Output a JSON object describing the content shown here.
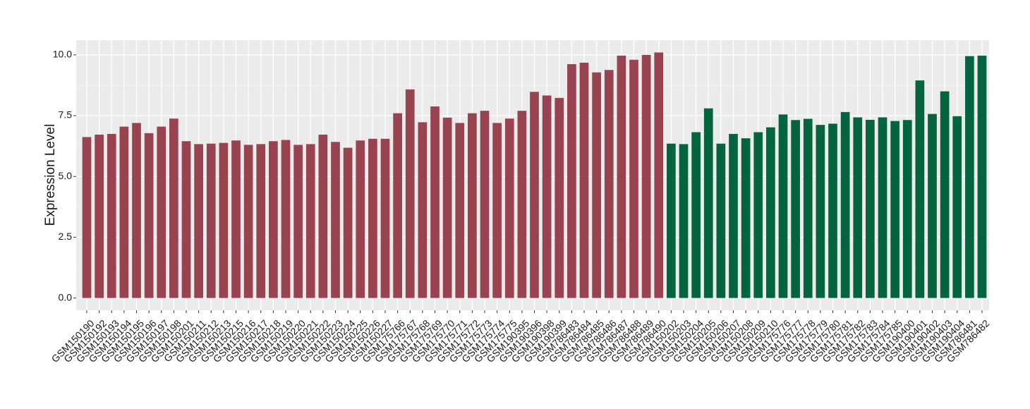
{
  "chart_data": {
    "type": "bar",
    "y_label": "Expression Level",
    "categories": [
      "GSM150190",
      "GSM150192",
      "GSM150193",
      "GSM150194",
      "GSM150195",
      "GSM150196",
      "GSM150197",
      "GSM150198",
      "GSM150201",
      "GSM150211",
      "GSM150212",
      "GSM150213",
      "GSM150215",
      "GSM150216",
      "GSM150217",
      "GSM150218",
      "GSM150219",
      "GSM150220",
      "GSM150221",
      "GSM150222",
      "GSM150223",
      "GSM150224",
      "GSM150225",
      "GSM150226",
      "GSM150227",
      "GSM175766",
      "GSM175767",
      "GSM175768",
      "GSM175769",
      "GSM175770",
      "GSM175771",
      "GSM175772",
      "GSM175773",
      "GSM175774",
      "GSM175775",
      "GSM190395",
      "GSM190396",
      "GSM190398",
      "GSM190399",
      "GSM786483",
      "GSM786484",
      "GSM786485",
      "GSM786486",
      "GSM786487",
      "GSM786488",
      "GSM786489",
      "GSM786490",
      "GSM150202",
      "GSM150203",
      "GSM150204",
      "GSM150205",
      "GSM150206",
      "GSM150207",
      "GSM150208",
      "GSM150209",
      "GSM150210",
      "GSM175776",
      "GSM175777",
      "GSM175778",
      "GSM175779",
      "GSM175780",
      "GSM175781",
      "GSM175782",
      "GSM175783",
      "GSM175784",
      "GSM175785",
      "GSM190400",
      "GSM190401",
      "GSM190402",
      "GSM190403",
      "GSM190404",
      "GSM786481",
      "GSM786482"
    ],
    "values": [
      6.62,
      6.72,
      6.75,
      7.05,
      7.2,
      6.78,
      7.05,
      7.38,
      6.45,
      6.33,
      6.35,
      6.38,
      6.48,
      6.3,
      6.33,
      6.45,
      6.5,
      6.3,
      6.33,
      6.72,
      6.42,
      6.18,
      6.48,
      6.55,
      6.55,
      7.6,
      8.58,
      7.23,
      7.88,
      7.42,
      7.2,
      7.6,
      7.7,
      7.2,
      7.38,
      7.7,
      8.48,
      8.33,
      8.23,
      9.62,
      9.68,
      9.28,
      9.38,
      9.97,
      9.8,
      10.0,
      10.1,
      6.35,
      6.33,
      6.82,
      7.8,
      6.35,
      6.75,
      6.57,
      6.82,
      7.02,
      7.55,
      7.32,
      7.37,
      7.12,
      7.17,
      7.65,
      7.43,
      7.33,
      7.43,
      7.28,
      7.32,
      8.95,
      7.57,
      8.5,
      7.48,
      9.95,
      9.97
    ],
    "colors": [
      "#98434f",
      "#98434f",
      "#98434f",
      "#98434f",
      "#98434f",
      "#98434f",
      "#98434f",
      "#98434f",
      "#98434f",
      "#98434f",
      "#98434f",
      "#98434f",
      "#98434f",
      "#98434f",
      "#98434f",
      "#98434f",
      "#98434f",
      "#98434f",
      "#98434f",
      "#98434f",
      "#98434f",
      "#98434f",
      "#98434f",
      "#98434f",
      "#98434f",
      "#98434f",
      "#98434f",
      "#98434f",
      "#98434f",
      "#98434f",
      "#98434f",
      "#98434f",
      "#98434f",
      "#98434f",
      "#98434f",
      "#98434f",
      "#98434f",
      "#98434f",
      "#98434f",
      "#98434f",
      "#98434f",
      "#98434f",
      "#98434f",
      "#98434f",
      "#98434f",
      "#98434f",
      "#98434f",
      "#046440",
      "#046440",
      "#046440",
      "#046440",
      "#046440",
      "#046440",
      "#046440",
      "#046440",
      "#046440",
      "#046440",
      "#046440",
      "#046440",
      "#046440",
      "#046440",
      "#046440",
      "#046440",
      "#046440",
      "#046440",
      "#046440",
      "#046440",
      "#046440",
      "#046440",
      "#046440",
      "#046440",
      "#046440",
      "#046440"
    ],
    "ylim": [
      -0.505,
      10.605
    ],
    "yticks": [
      {
        "value": 0,
        "label": "0.0"
      },
      {
        "value": 2.5,
        "label": "2.5"
      },
      {
        "value": 5,
        "label": "5.0"
      },
      {
        "value": 7.5,
        "label": "7.5"
      },
      {
        "value": 10,
        "label": "10.0"
      }
    ],
    "grid": true
  }
}
